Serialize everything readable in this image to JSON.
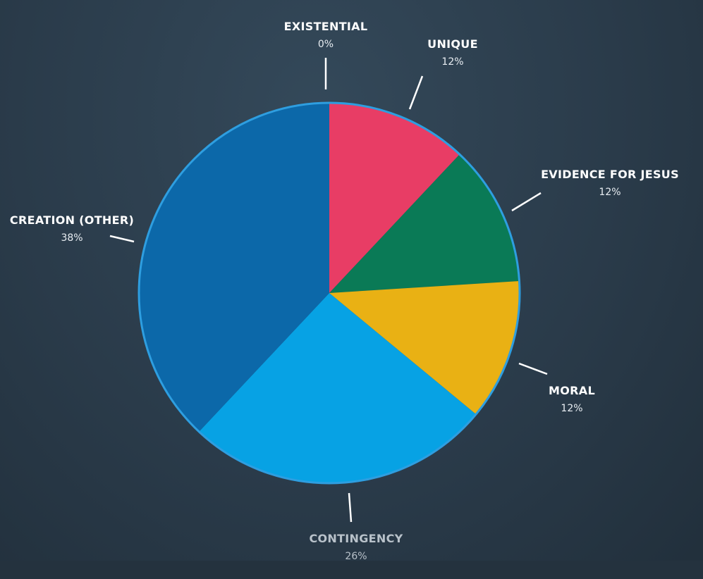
{
  "chart_data": {
    "type": "pie",
    "start": "top",
    "direction": "clockwise",
    "slices": [
      {
        "label": "EXISTENTIAL",
        "value": 0,
        "value_label": "0%",
        "color": "#1d6fb0"
      },
      {
        "label": "UNIQUE",
        "value": 12,
        "value_label": "12%",
        "color": "#e83d65"
      },
      {
        "label": "EVIDENCE FOR JESUS",
        "value": 12,
        "value_label": "12%",
        "color": "#0a7a56"
      },
      {
        "label": "MORAL",
        "value": 12,
        "value_label": "12%",
        "color": "#e9b114"
      },
      {
        "label": "CONTINGENCY",
        "value": 26,
        "value_label": "26%",
        "color": "#07a2e4"
      },
      {
        "label": "CREATION (OTHER)",
        "value": 38,
        "value_label": "38%",
        "color": "#0c68a9"
      }
    ],
    "outline_color": "#2e9ee0"
  }
}
